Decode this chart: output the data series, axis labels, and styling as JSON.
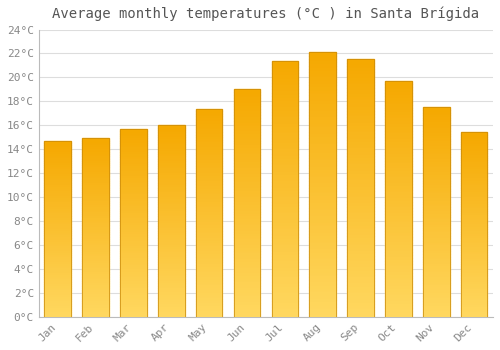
{
  "title": "Average monthly temperatures (°C ) in Santa Brígida",
  "months": [
    "Jan",
    "Feb",
    "Mar",
    "Apr",
    "May",
    "Jun",
    "Jul",
    "Aug",
    "Sep",
    "Oct",
    "Nov",
    "Dec"
  ],
  "values": [
    14.7,
    14.9,
    15.7,
    16.0,
    17.4,
    19.0,
    21.4,
    22.1,
    21.5,
    19.7,
    17.5,
    15.4
  ],
  "bar_color_top": "#F5A800",
  "bar_color_bottom": "#FFD860",
  "bar_border_color": "#C8880A",
  "background_color": "#ffffff",
  "plot_bg_color": "#ffffff",
  "ylim": [
    0,
    24
  ],
  "yticks": [
    0,
    2,
    4,
    6,
    8,
    10,
    12,
    14,
    16,
    18,
    20,
    22,
    24
  ],
  "ytick_labels": [
    "0°C",
    "2°C",
    "4°C",
    "6°C",
    "8°C",
    "10°C",
    "12°C",
    "14°C",
    "16°C",
    "18°C",
    "20°C",
    "22°C",
    "24°C"
  ],
  "title_fontsize": 10,
  "tick_fontsize": 8,
  "grid_color": "#dddddd",
  "tick_color": "#888888"
}
